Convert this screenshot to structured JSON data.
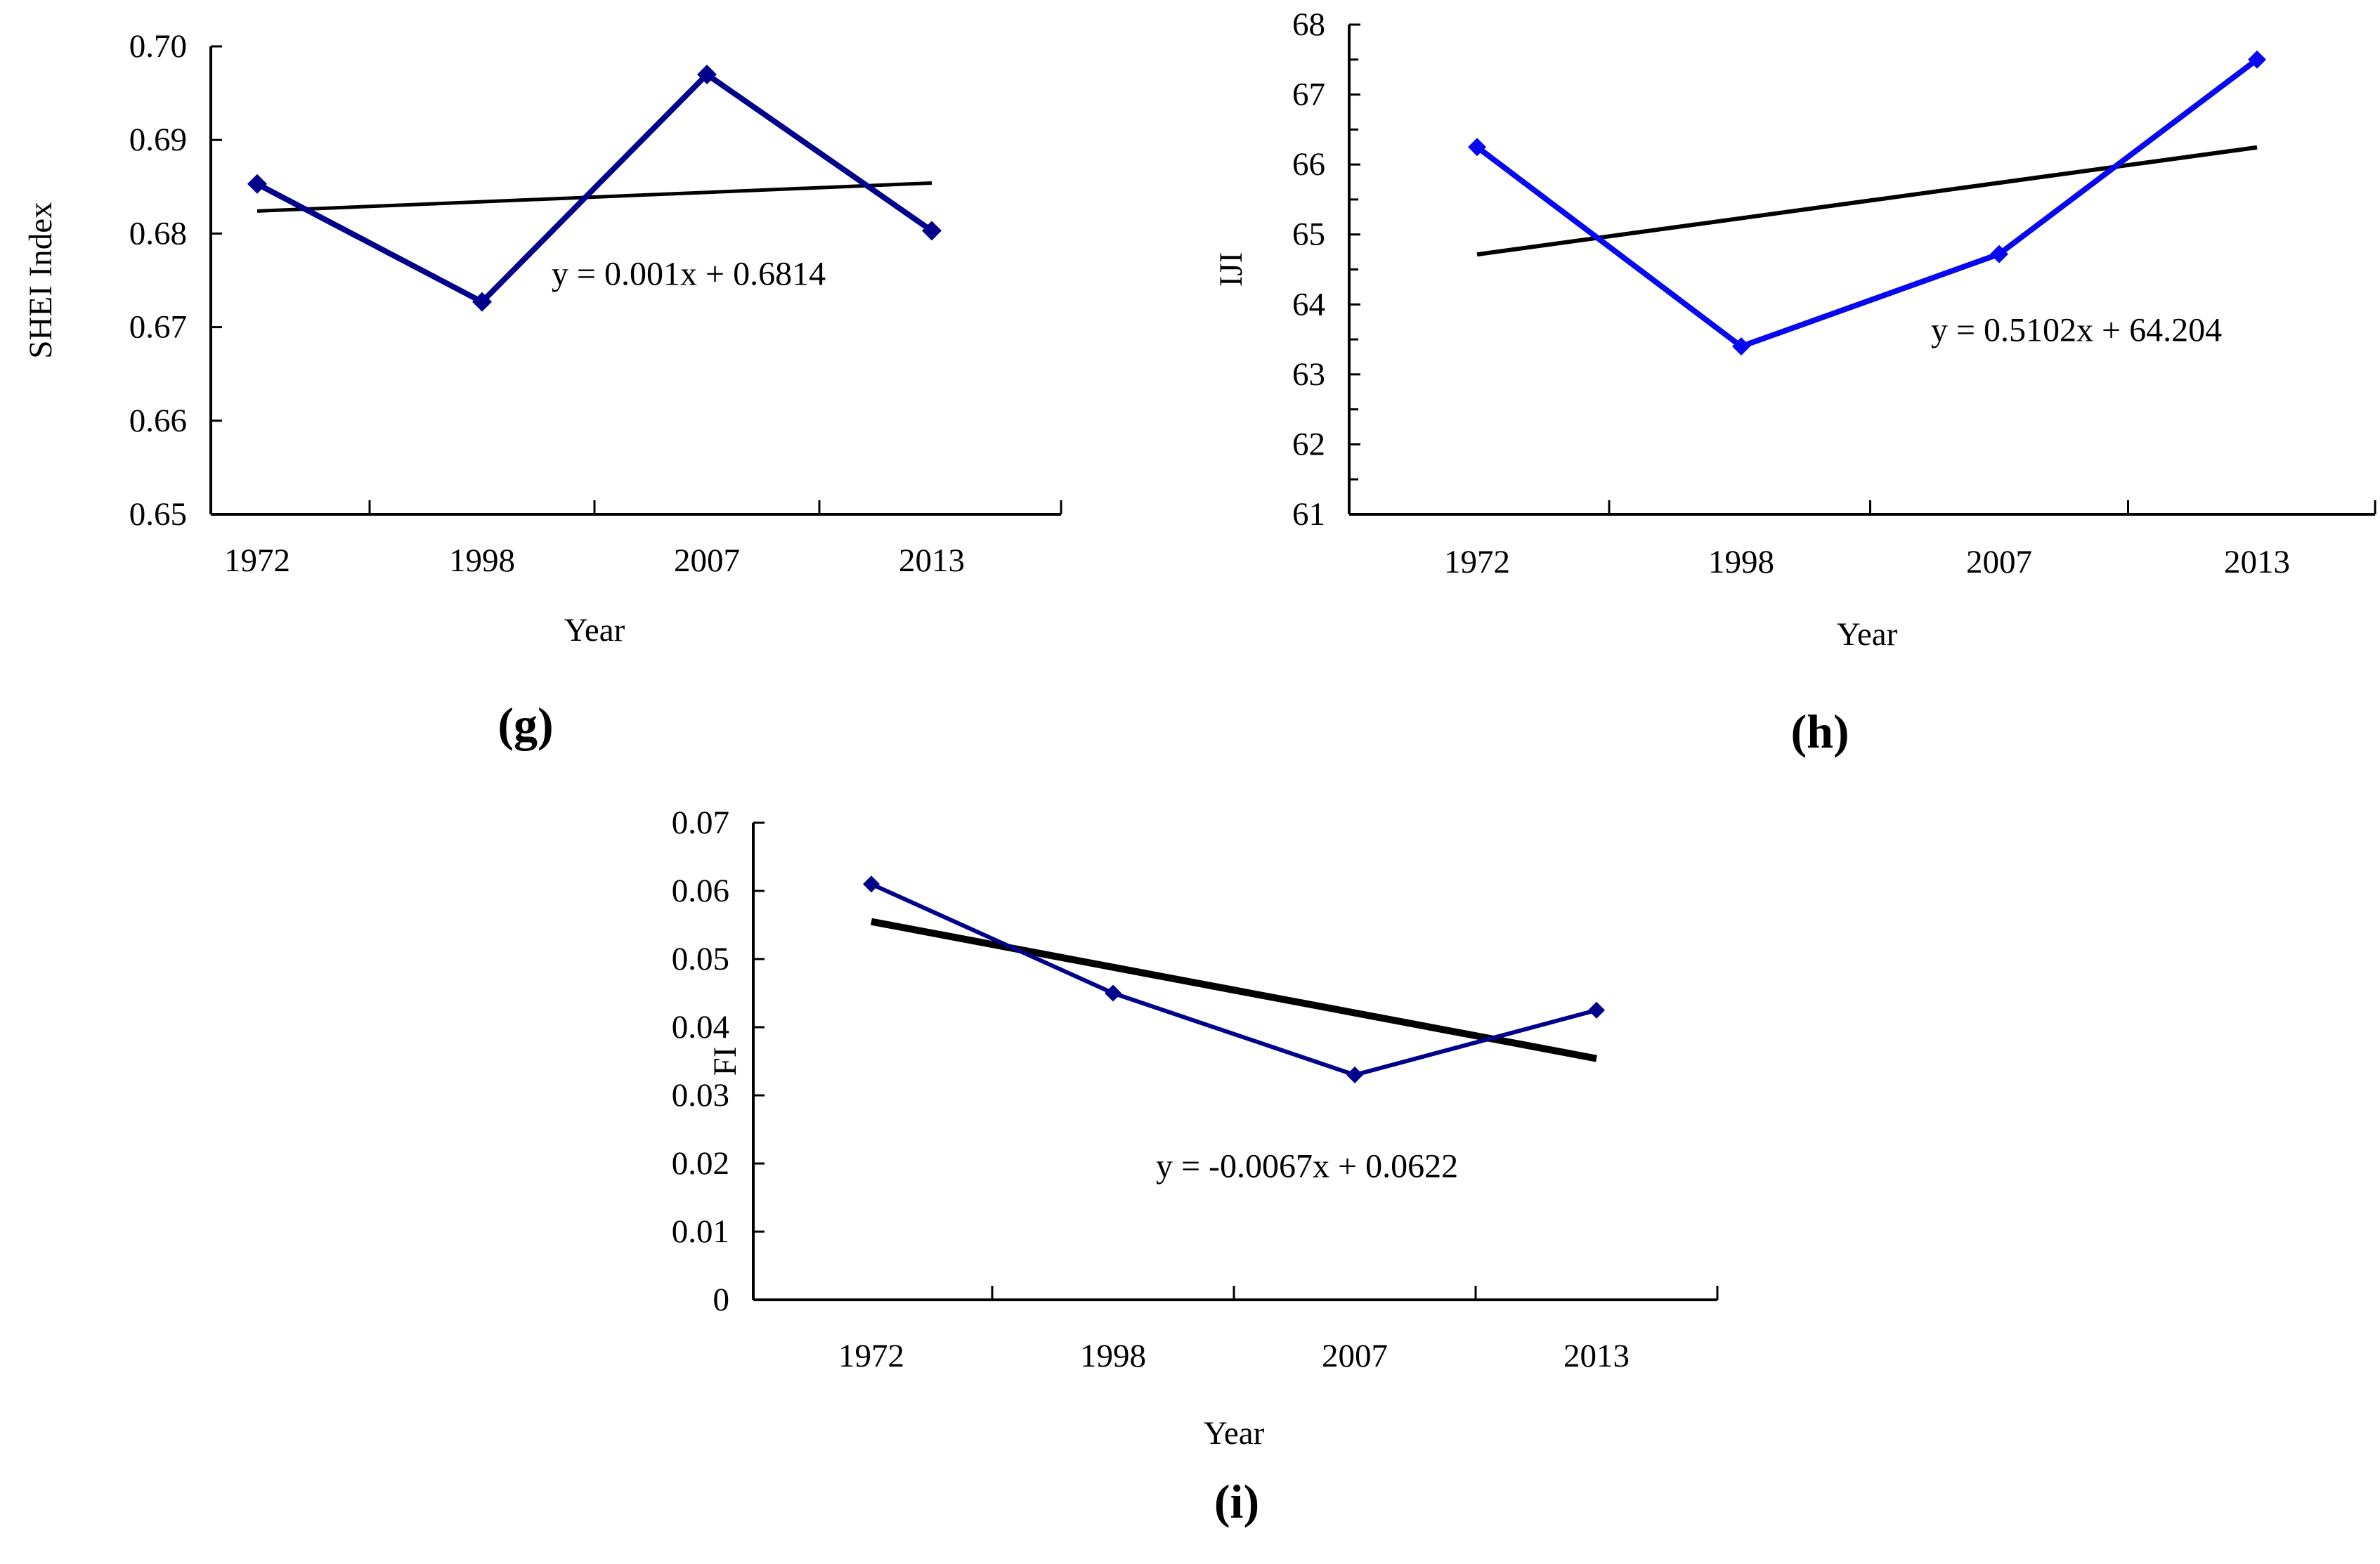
{
  "figure": {
    "background": "#ffffff"
  },
  "chart_data": [
    {
      "id": "g",
      "type": "line",
      "caption": "(g)",
      "xlabel": "Year",
      "ylabel": "SHEI Index",
      "categories": [
        "1972",
        "1998",
        "2007",
        "2013"
      ],
      "series": [
        {
          "name": "SHEI Index",
          "color": "#00008B",
          "marker": "diamond",
          "values": [
            0.6853,
            0.6727,
            0.697,
            0.6803
          ]
        }
      ],
      "trendline": {
        "equation": "y = 0.001x + 0.6814",
        "slope": 0.001,
        "intercept": 0.6814,
        "color": "#000000"
      },
      "ylim": [
        0.65,
        0.7
      ],
      "ytick_step": 0.01,
      "ytick_labels": [
        "0.70",
        "0.69",
        "0.68",
        "0.67",
        "0.66",
        "0.65"
      ],
      "ytick_minor_step": null,
      "grid": false,
      "legend": "none"
    },
    {
      "id": "h",
      "type": "line",
      "caption": "(h)",
      "xlabel": "Year",
      "ylabel": "IJI",
      "categories": [
        "1972",
        "1998",
        "2007",
        "2013"
      ],
      "series": [
        {
          "name": "IJI",
          "color": "#0707F0",
          "marker": "diamond",
          "values": [
            66.25,
            63.4,
            64.72,
            67.5
          ]
        }
      ],
      "trendline": {
        "equation": "y = 0.5102x + 64.204",
        "slope": 0.5102,
        "intercept": 64.204,
        "color": "#000000"
      },
      "ylim": [
        61,
        68
      ],
      "ytick_step": 1,
      "ytick_labels": [
        "68",
        "67",
        "66",
        "65",
        "64",
        "63",
        "62",
        "61"
      ],
      "ytick_minor_step": 0.5,
      "grid": false,
      "legend": "none"
    },
    {
      "id": "i",
      "type": "line",
      "caption": "(i)",
      "xlabel": "Year",
      "ylabel": "FI",
      "categories": [
        "1972",
        "1998",
        "2007",
        "2013"
      ],
      "series": [
        {
          "name": "FI",
          "color": "#00008B",
          "marker": "diamond",
          "values": [
            0.061,
            0.045,
            0.033,
            0.0425
          ]
        }
      ],
      "trendline": {
        "equation": "y = -0.0067x + 0.0622",
        "slope": -0.0067,
        "intercept": 0.0622,
        "color": "#000000"
      },
      "ylim": [
        0,
        0.07
      ],
      "ytick_step": 0.01,
      "ytick_labels": [
        "0.07",
        "0.06",
        "0.05",
        "0.04",
        "0.03",
        "0.02",
        "0.01",
        "0"
      ],
      "ytick_minor_step": null,
      "grid": false,
      "legend": "none"
    }
  ]
}
